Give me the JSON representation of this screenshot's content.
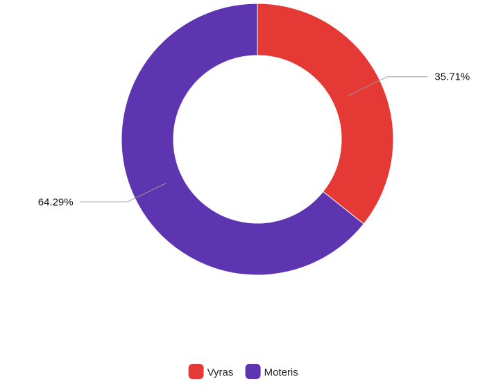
{
  "chart_data": {
    "type": "pie",
    "variant": "donut",
    "title": "",
    "labels": [
      "Vyras",
      "Moteris"
    ],
    "values": [
      35.71,
      64.29
    ],
    "value_labels": [
      "35.71%",
      "64.29%"
    ],
    "colors": [
      "#e53935",
      "#5e35b1"
    ],
    "legend": {
      "position": "bottom",
      "entries": [
        "Vyras",
        "Moteris"
      ]
    }
  }
}
